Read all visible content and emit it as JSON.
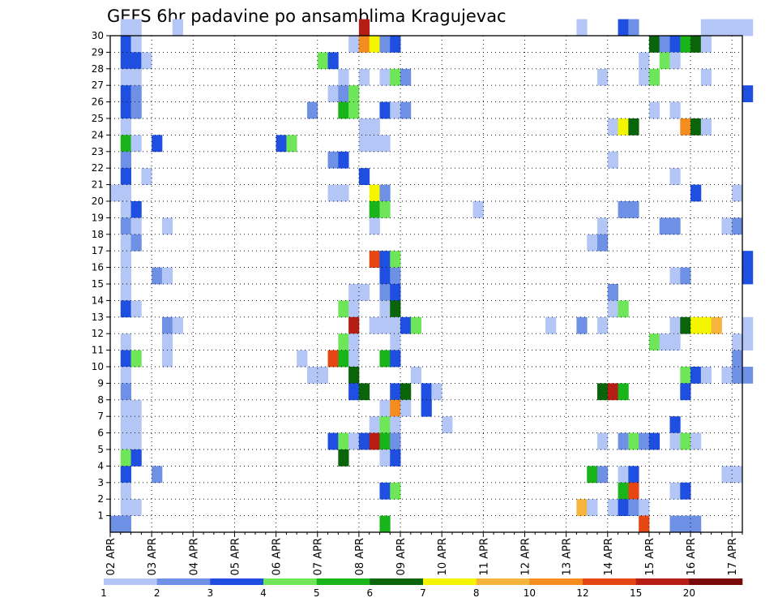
{
  "chart_data": {
    "type": "heatmap",
    "title": "GEFS 6hr padavine po ansamblima Kragujevac",
    "members": [
      "1",
      "2",
      "3",
      "4",
      "5",
      "6",
      "7",
      "8",
      "9",
      "10",
      "11",
      "12",
      "13",
      "14",
      "15",
      "16",
      "17",
      "18",
      "19",
      "20",
      "21",
      "22",
      "23",
      "24",
      "25",
      "26",
      "27",
      "28",
      "29",
      "30"
    ],
    "time_step_hours": 6,
    "time_steps": 61,
    "date_labels": [
      "02 APR",
      "03 APR",
      "04 APR",
      "05 APR",
      "06 APR",
      "07 APR",
      "08 APR",
      "09 APR",
      "10 APR",
      "11 APR",
      "12 APR",
      "13 APR",
      "14 APR",
      "15 APR",
      "16 APR",
      "17 APR"
    ],
    "colorbar": {
      "labels": [
        "1",
        "2",
        "3",
        "4",
        "5",
        "6",
        "7",
        "8",
        "10",
        "12",
        "15",
        "20"
      ],
      "colors": [
        "#b4c6f5",
        "#6e91e6",
        "#1f4fe0",
        "#6fe65a",
        "#19b419",
        "#0a640a",
        "#f5f500",
        "#f5b43c",
        "#f58c1e",
        "#e64614",
        "#b41e14",
        "#780a0a"
      ]
    },
    "grid": "dotted",
    "cells": [
      [
        1,
        30,
        1
      ],
      [
        2,
        30,
        1
      ],
      [
        6,
        30,
        1
      ],
      [
        24,
        30,
        11
      ],
      [
        45,
        30,
        1
      ],
      [
        49,
        30,
        3
      ],
      [
        50,
        30,
        2
      ],
      [
        57,
        30,
        1
      ],
      [
        58,
        30,
        1
      ],
      [
        59,
        30,
        1
      ],
      [
        60,
        30,
        1
      ],
      [
        61,
        30,
        1
      ],
      [
        1,
        29,
        3
      ],
      [
        2,
        29,
        1
      ],
      [
        23,
        29,
        1
      ],
      [
        24,
        29,
        9
      ],
      [
        25,
        29,
        7
      ],
      [
        26,
        29,
        2
      ],
      [
        27,
        29,
        3
      ],
      [
        52,
        29,
        6
      ],
      [
        53,
        29,
        2
      ],
      [
        54,
        29,
        3
      ],
      [
        55,
        29,
        5
      ],
      [
        56,
        29,
        6
      ],
      [
        57,
        29,
        1
      ],
      [
        1,
        28,
        3
      ],
      [
        2,
        28,
        3
      ],
      [
        3,
        28,
        1
      ],
      [
        20,
        28,
        4
      ],
      [
        21,
        28,
        3
      ],
      [
        51,
        28,
        1
      ],
      [
        53,
        28,
        4
      ],
      [
        54,
        28,
        1
      ],
      [
        1,
        27,
        1
      ],
      [
        2,
        27,
        1
      ],
      [
        22,
        27,
        1
      ],
      [
        24,
        27,
        1
      ],
      [
        26,
        27,
        1
      ],
      [
        27,
        27,
        4
      ],
      [
        28,
        27,
        2
      ],
      [
        47,
        27,
        1
      ],
      [
        51,
        27,
        1
      ],
      [
        52,
        27,
        4
      ],
      [
        57,
        27,
        1
      ],
      [
        1,
        26,
        3
      ],
      [
        2,
        26,
        2
      ],
      [
        21,
        26,
        1
      ],
      [
        22,
        26,
        2
      ],
      [
        23,
        26,
        4
      ],
      [
        61,
        26,
        3
      ],
      [
        1,
        25,
        3
      ],
      [
        2,
        25,
        2
      ],
      [
        19,
        25,
        2
      ],
      [
        22,
        25,
        5
      ],
      [
        23,
        25,
        4
      ],
      [
        26,
        25,
        3
      ],
      [
        27,
        25,
        1
      ],
      [
        28,
        25,
        2
      ],
      [
        52,
        25,
        1
      ],
      [
        54,
        25,
        1
      ],
      [
        1,
        24,
        1
      ],
      [
        24,
        24,
        1
      ],
      [
        25,
        24,
        1
      ],
      [
        48,
        24,
        1
      ],
      [
        49,
        24,
        7
      ],
      [
        50,
        24,
        6
      ],
      [
        55,
        24,
        9
      ],
      [
        56,
        24,
        6
      ],
      [
        57,
        24,
        1
      ],
      [
        1,
        23,
        5
      ],
      [
        2,
        23,
        1
      ],
      [
        4,
        23,
        3
      ],
      [
        16,
        23,
        3
      ],
      [
        17,
        23,
        4
      ],
      [
        24,
        23,
        1
      ],
      [
        25,
        23,
        1
      ],
      [
        26,
        23,
        1
      ],
      [
        1,
        22,
        2
      ],
      [
        21,
        22,
        2
      ],
      [
        22,
        22,
        3
      ],
      [
        48,
        22,
        1
      ],
      [
        1,
        21,
        3
      ],
      [
        3,
        21,
        1
      ],
      [
        24,
        21,
        3
      ],
      [
        54,
        21,
        1
      ],
      [
        0,
        20,
        1
      ],
      [
        1,
        20,
        1
      ],
      [
        21,
        20,
        1
      ],
      [
        22,
        20,
        1
      ],
      [
        25,
        20,
        7
      ],
      [
        26,
        20,
        2
      ],
      [
        56,
        20,
        3
      ],
      [
        60,
        20,
        1
      ],
      [
        1,
        19,
        1
      ],
      [
        2,
        19,
        3
      ],
      [
        25,
        19,
        5
      ],
      [
        26,
        19,
        4
      ],
      [
        35,
        19,
        1
      ],
      [
        49,
        19,
        2
      ],
      [
        50,
        19,
        2
      ],
      [
        1,
        18,
        2
      ],
      [
        2,
        18,
        1
      ],
      [
        5,
        18,
        1
      ],
      [
        25,
        18,
        1
      ],
      [
        47,
        18,
        1
      ],
      [
        53,
        18,
        2
      ],
      [
        54,
        18,
        2
      ],
      [
        59,
        18,
        1
      ],
      [
        60,
        18,
        2
      ],
      [
        1,
        17,
        1
      ],
      [
        2,
        17,
        2
      ],
      [
        46,
        17,
        1
      ],
      [
        47,
        17,
        2
      ],
      [
        1,
        16,
        1
      ],
      [
        25,
        16,
        10
      ],
      [
        26,
        16,
        3
      ],
      [
        27,
        16,
        4
      ],
      [
        61,
        16,
        3
      ],
      [
        1,
        15,
        1
      ],
      [
        4,
        15,
        2
      ],
      [
        5,
        15,
        1
      ],
      [
        26,
        15,
        3
      ],
      [
        27,
        15,
        2
      ],
      [
        54,
        15,
        1
      ],
      [
        55,
        15,
        2
      ],
      [
        61,
        15,
        3
      ],
      [
        1,
        14,
        1
      ],
      [
        23,
        14,
        1
      ],
      [
        24,
        14,
        1
      ],
      [
        26,
        14,
        2
      ],
      [
        27,
        14,
        3
      ],
      [
        48,
        14,
        2
      ],
      [
        1,
        13,
        3
      ],
      [
        2,
        13,
        1
      ],
      [
        22,
        13,
        4
      ],
      [
        23,
        13,
        1
      ],
      [
        26,
        13,
        1
      ],
      [
        27,
        13,
        6
      ],
      [
        48,
        13,
        1
      ],
      [
        49,
        13,
        4
      ],
      [
        5,
        12,
        2
      ],
      [
        6,
        12,
        1
      ],
      [
        23,
        12,
        11
      ],
      [
        25,
        12,
        1
      ],
      [
        26,
        12,
        1
      ],
      [
        27,
        12,
        1
      ],
      [
        28,
        12,
        3
      ],
      [
        29,
        12,
        4
      ],
      [
        42,
        12,
        1
      ],
      [
        45,
        12,
        2
      ],
      [
        47,
        12,
        1
      ],
      [
        54,
        12,
        1
      ],
      [
        55,
        12,
        6
      ],
      [
        56,
        12,
        7
      ],
      [
        57,
        12,
        7
      ],
      [
        58,
        12,
        8
      ],
      [
        61,
        12,
        1
      ],
      [
        1,
        11,
        1
      ],
      [
        5,
        11,
        1
      ],
      [
        22,
        11,
        4
      ],
      [
        23,
        11,
        1
      ],
      [
        27,
        11,
        1
      ],
      [
        52,
        11,
        4
      ],
      [
        53,
        11,
        1
      ],
      [
        54,
        11,
        1
      ],
      [
        60,
        11,
        1
      ],
      [
        61,
        11,
        1
      ],
      [
        1,
        10,
        3
      ],
      [
        2,
        10,
        4
      ],
      [
        5,
        10,
        1
      ],
      [
        18,
        10,
        1
      ],
      [
        21,
        10,
        10
      ],
      [
        22,
        10,
        5
      ],
      [
        23,
        10,
        1
      ],
      [
        26,
        10,
        5
      ],
      [
        27,
        10,
        3
      ],
      [
        60,
        10,
        2
      ],
      [
        1,
        9,
        1
      ],
      [
        19,
        9,
        1
      ],
      [
        20,
        9,
        1
      ],
      [
        23,
        9,
        6
      ],
      [
        29,
        9,
        1
      ],
      [
        55,
        9,
        4
      ],
      [
        56,
        9,
        3
      ],
      [
        57,
        9,
        1
      ],
      [
        59,
        9,
        1
      ],
      [
        60,
        9,
        2
      ],
      [
        61,
        9,
        2
      ],
      [
        1,
        8,
        2
      ],
      [
        23,
        8,
        3
      ],
      [
        24,
        8,
        6
      ],
      [
        27,
        8,
        3
      ],
      [
        28,
        8,
        6
      ],
      [
        30,
        8,
        3
      ],
      [
        31,
        8,
        1
      ],
      [
        47,
        8,
        6
      ],
      [
        48,
        8,
        11
      ],
      [
        49,
        8,
        5
      ],
      [
        55,
        8,
        3
      ],
      [
        1,
        7,
        1
      ],
      [
        2,
        7,
        1
      ],
      [
        26,
        7,
        1
      ],
      [
        27,
        7,
        9
      ],
      [
        28,
        7,
        1
      ],
      [
        30,
        7,
        3
      ],
      [
        1,
        6,
        1
      ],
      [
        2,
        6,
        1
      ],
      [
        25,
        6,
        1
      ],
      [
        26,
        6,
        4
      ],
      [
        27,
        6,
        1
      ],
      [
        32,
        6,
        1
      ],
      [
        54,
        6,
        3
      ],
      [
        1,
        5,
        1
      ],
      [
        2,
        5,
        1
      ],
      [
        21,
        5,
        3
      ],
      [
        22,
        5,
        4
      ],
      [
        23,
        5,
        1
      ],
      [
        24,
        5,
        3
      ],
      [
        25,
        5,
        11
      ],
      [
        26,
        5,
        5
      ],
      [
        27,
        5,
        2
      ],
      [
        47,
        5,
        1
      ],
      [
        49,
        5,
        2
      ],
      [
        50,
        5,
        4
      ],
      [
        51,
        5,
        2
      ],
      [
        52,
        5,
        3
      ],
      [
        54,
        5,
        1
      ],
      [
        55,
        5,
        4
      ],
      [
        56,
        5,
        1
      ],
      [
        1,
        4,
        4
      ],
      [
        2,
        4,
        3
      ],
      [
        22,
        4,
        6
      ],
      [
        26,
        4,
        1
      ],
      [
        27,
        4,
        3
      ],
      [
        1,
        3,
        3
      ],
      [
        4,
        3,
        2
      ],
      [
        46,
        3,
        5
      ],
      [
        47,
        3,
        2
      ],
      [
        49,
        3,
        1
      ],
      [
        50,
        3,
        3
      ],
      [
        59,
        3,
        1
      ],
      [
        60,
        3,
        1
      ],
      [
        1,
        2,
        1
      ],
      [
        26,
        2,
        3
      ],
      [
        27,
        2,
        4
      ],
      [
        49,
        2,
        5
      ],
      [
        50,
        2,
        10
      ],
      [
        54,
        2,
        1
      ],
      [
        55,
        2,
        3
      ],
      [
        1,
        1,
        1
      ],
      [
        2,
        1,
        1
      ],
      [
        45,
        1,
        8
      ],
      [
        46,
        1,
        1
      ],
      [
        48,
        1,
        1
      ],
      [
        49,
        1,
        3
      ],
      [
        50,
        1,
        2
      ],
      [
        51,
        1,
        1
      ],
      [
        0,
        0,
        2
      ],
      [
        1,
        0,
        2
      ],
      [
        26,
        0,
        5
      ],
      [
        51,
        0,
        10
      ],
      [
        54,
        0,
        2
      ],
      [
        55,
        0,
        2
      ],
      [
        56,
        0,
        2
      ]
    ]
  }
}
